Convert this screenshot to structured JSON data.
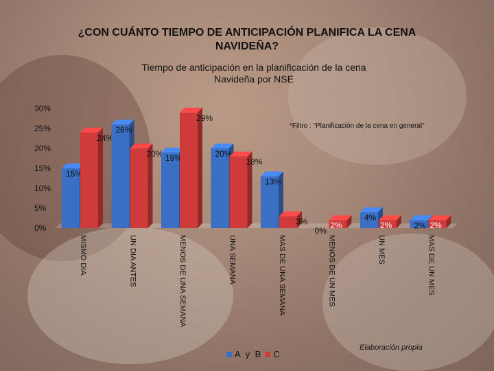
{
  "title_line1": "¿CON CUÁNTO TIEMPO DE ANTICIPACIÓN PLANIFICA LA CENA",
  "title_line2": "NAVIDEÑA?",
  "subtitle_line1": "Tiempo de anticipación en la planificación de la cena",
  "subtitle_line2": "Navideña por NSE",
  "filter_note": "*Filtro : \"Planificación de la cena en general\"",
  "credit": "Elaboración propia",
  "colors": {
    "series_ab": "#3a6fc4",
    "series_c": "#cf3b3b"
  },
  "chart_data": {
    "type": "bar",
    "title": "Tiempo de anticipación en la planificación de la cena Navideña por NSE",
    "categories": [
      "MISMO DIA",
      "UN DIA ANTES",
      "MENOS DE UNA SEMANA",
      "UNA SEMANA",
      "MAS DE UNA SEMANA",
      "MENOS DE UN MES",
      "UN MES",
      "MAS DE UN MES"
    ],
    "series": [
      {
        "name": "A y B",
        "values": [
          15,
          26,
          19,
          20,
          13,
          0,
          4,
          2
        ],
        "labels": [
          "15%",
          "26%",
          "19%",
          "20%",
          "13%",
          "0%",
          "4%",
          "2%"
        ]
      },
      {
        "name": "C",
        "values": [
          24,
          20,
          29,
          18,
          3,
          2,
          2,
          2
        ],
        "labels": [
          "24%",
          "20%",
          "29%",
          "18%",
          "3%",
          "2%",
          "2%",
          "2%"
        ]
      }
    ],
    "y_ticks": [
      "0%",
      "5%",
      "10%",
      "15%",
      "20%",
      "25%",
      "30%"
    ],
    "ylim": [
      0,
      30
    ],
    "legend_position": "bottom"
  }
}
